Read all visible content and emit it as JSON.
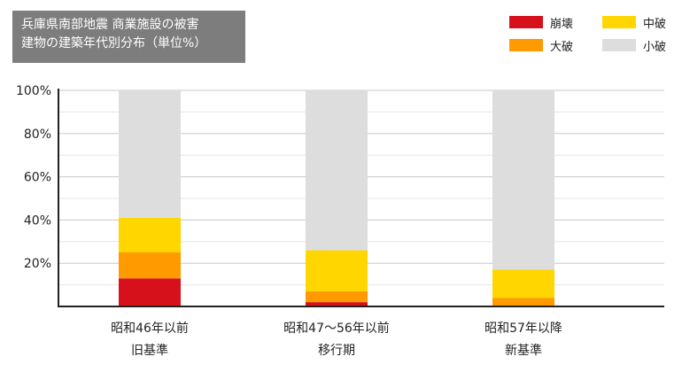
{
  "title": {
    "line1": "兵庫県南部地震 商業施設の被害",
    "line2": "建物の建築年代別分布（単位%）"
  },
  "legend": {
    "items": [
      {
        "key": "collapse",
        "label": "崩壊",
        "color": "#d7111b"
      },
      {
        "key": "medium",
        "label": "中破",
        "color": "#ffd600"
      },
      {
        "key": "major",
        "label": "大破",
        "color": "#ff9a00"
      },
      {
        "key": "minor",
        "label": "小破",
        "color": "#dddddd"
      }
    ]
  },
  "chart_data": {
    "type": "bar",
    "stacked": true,
    "categories": [
      {
        "line1": "昭和46年以前",
        "line2": "旧基準"
      },
      {
        "line1": "昭和47〜56年以前",
        "line2": "移行期"
      },
      {
        "line1": "昭和57年以降",
        "line2": "新基準"
      }
    ],
    "series": [
      {
        "name": "崩壊",
        "color": "#d7111b",
        "values": [
          13,
          2,
          0
        ]
      },
      {
        "name": "大破",
        "color": "#ff9a00",
        "values": [
          12,
          5,
          4
        ]
      },
      {
        "name": "中破",
        "color": "#ffd600",
        "values": [
          16,
          19,
          13
        ]
      },
      {
        "name": "小破",
        "color": "#dddddd",
        "values": [
          59,
          74,
          83
        ]
      }
    ],
    "ylim": [
      0,
      100
    ],
    "yticks": [
      {
        "value": 20,
        "label": "20%"
      },
      {
        "value": 40,
        "label": "40%"
      },
      {
        "value": 60,
        "label": "60%"
      },
      {
        "value": 80,
        "label": "80%"
      },
      {
        "value": 100,
        "label": "100%"
      }
    ],
    "minor_gridlines": [
      10,
      30,
      50,
      70,
      90
    ],
    "grid": true,
    "legend_position": "top-right"
  }
}
